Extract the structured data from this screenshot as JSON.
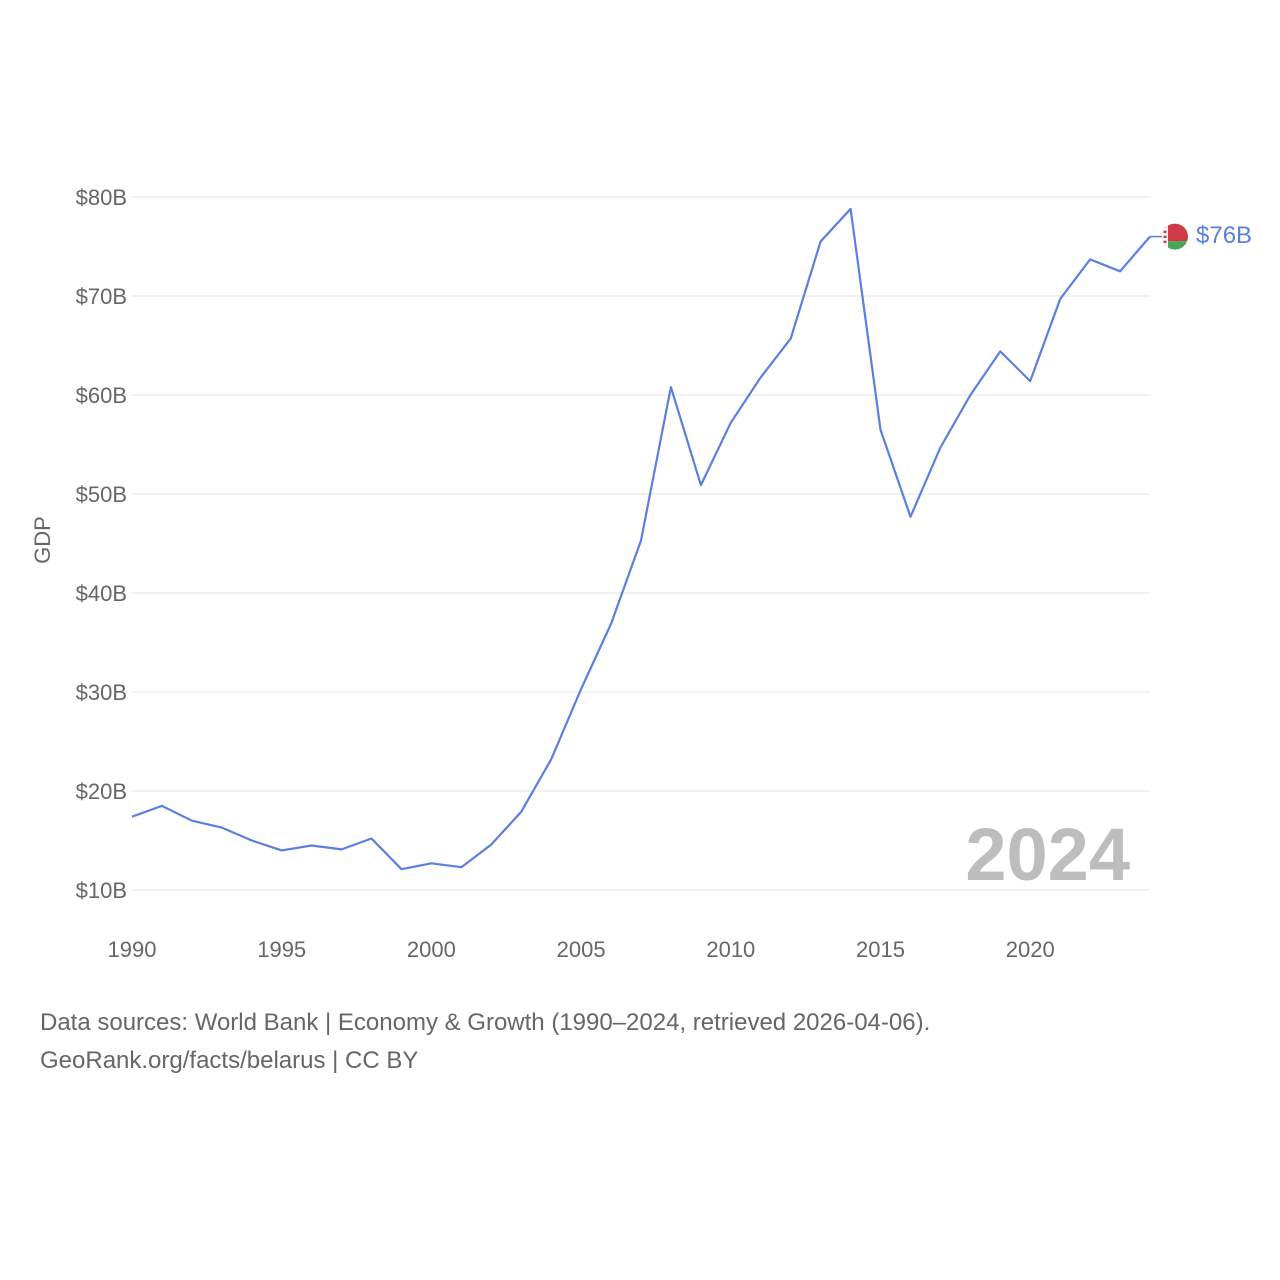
{
  "chart_data": {
    "type": "line",
    "ylabel": "GDP",
    "xlabel": "",
    "xlim": [
      1990,
      2024
    ],
    "ylim": [
      10,
      80
    ],
    "x_ticks": [
      1990,
      1995,
      2000,
      2005,
      2010,
      2015,
      2020
    ],
    "x_tick_labels": [
      "1990",
      "1995",
      "2000",
      "2005",
      "2010",
      "2015",
      "2020"
    ],
    "y_ticks": [
      10,
      20,
      30,
      40,
      50,
      60,
      70,
      80
    ],
    "y_tick_labels": [
      "$10B",
      "$20B",
      "$30B",
      "$40B",
      "$50B",
      "$60B",
      "$70B",
      "$80B"
    ],
    "series": [
      {
        "name": "Belarus",
        "color": "#5b7fe0",
        "x": [
          1990,
          1991,
          1992,
          1993,
          1994,
          1995,
          1996,
          1997,
          1998,
          1999,
          2000,
          2001,
          2002,
          2003,
          2004,
          2005,
          2006,
          2007,
          2008,
          2009,
          2010,
          2011,
          2012,
          2013,
          2014,
          2015,
          2016,
          2017,
          2018,
          2019,
          2020,
          2021,
          2022,
          2023,
          2024
        ],
        "values": [
          17.4,
          18.5,
          17.0,
          16.3,
          15.0,
          14.0,
          14.5,
          14.1,
          15.2,
          12.1,
          12.7,
          12.3,
          14.6,
          17.9,
          23.2,
          30.3,
          36.9,
          45.3,
          60.8,
          50.9,
          57.2,
          61.8,
          65.7,
          75.5,
          78.8,
          56.5,
          47.7,
          54.7,
          60.0,
          64.4,
          61.4,
          69.7,
          73.7,
          72.5,
          76.0
        ]
      }
    ],
    "end_label": "$76B",
    "year_watermark": "2024",
    "flag": {
      "colors": {
        "red": "#cf3b46",
        "green": "#4aa657",
        "white": "#ffffff"
      }
    }
  },
  "footer": {
    "line1": "Data sources: World Bank | Economy & Growth (1990–2024, retrieved 2026-04-06).",
    "line2": "GeoRank.org/facts/belarus | CC BY"
  }
}
